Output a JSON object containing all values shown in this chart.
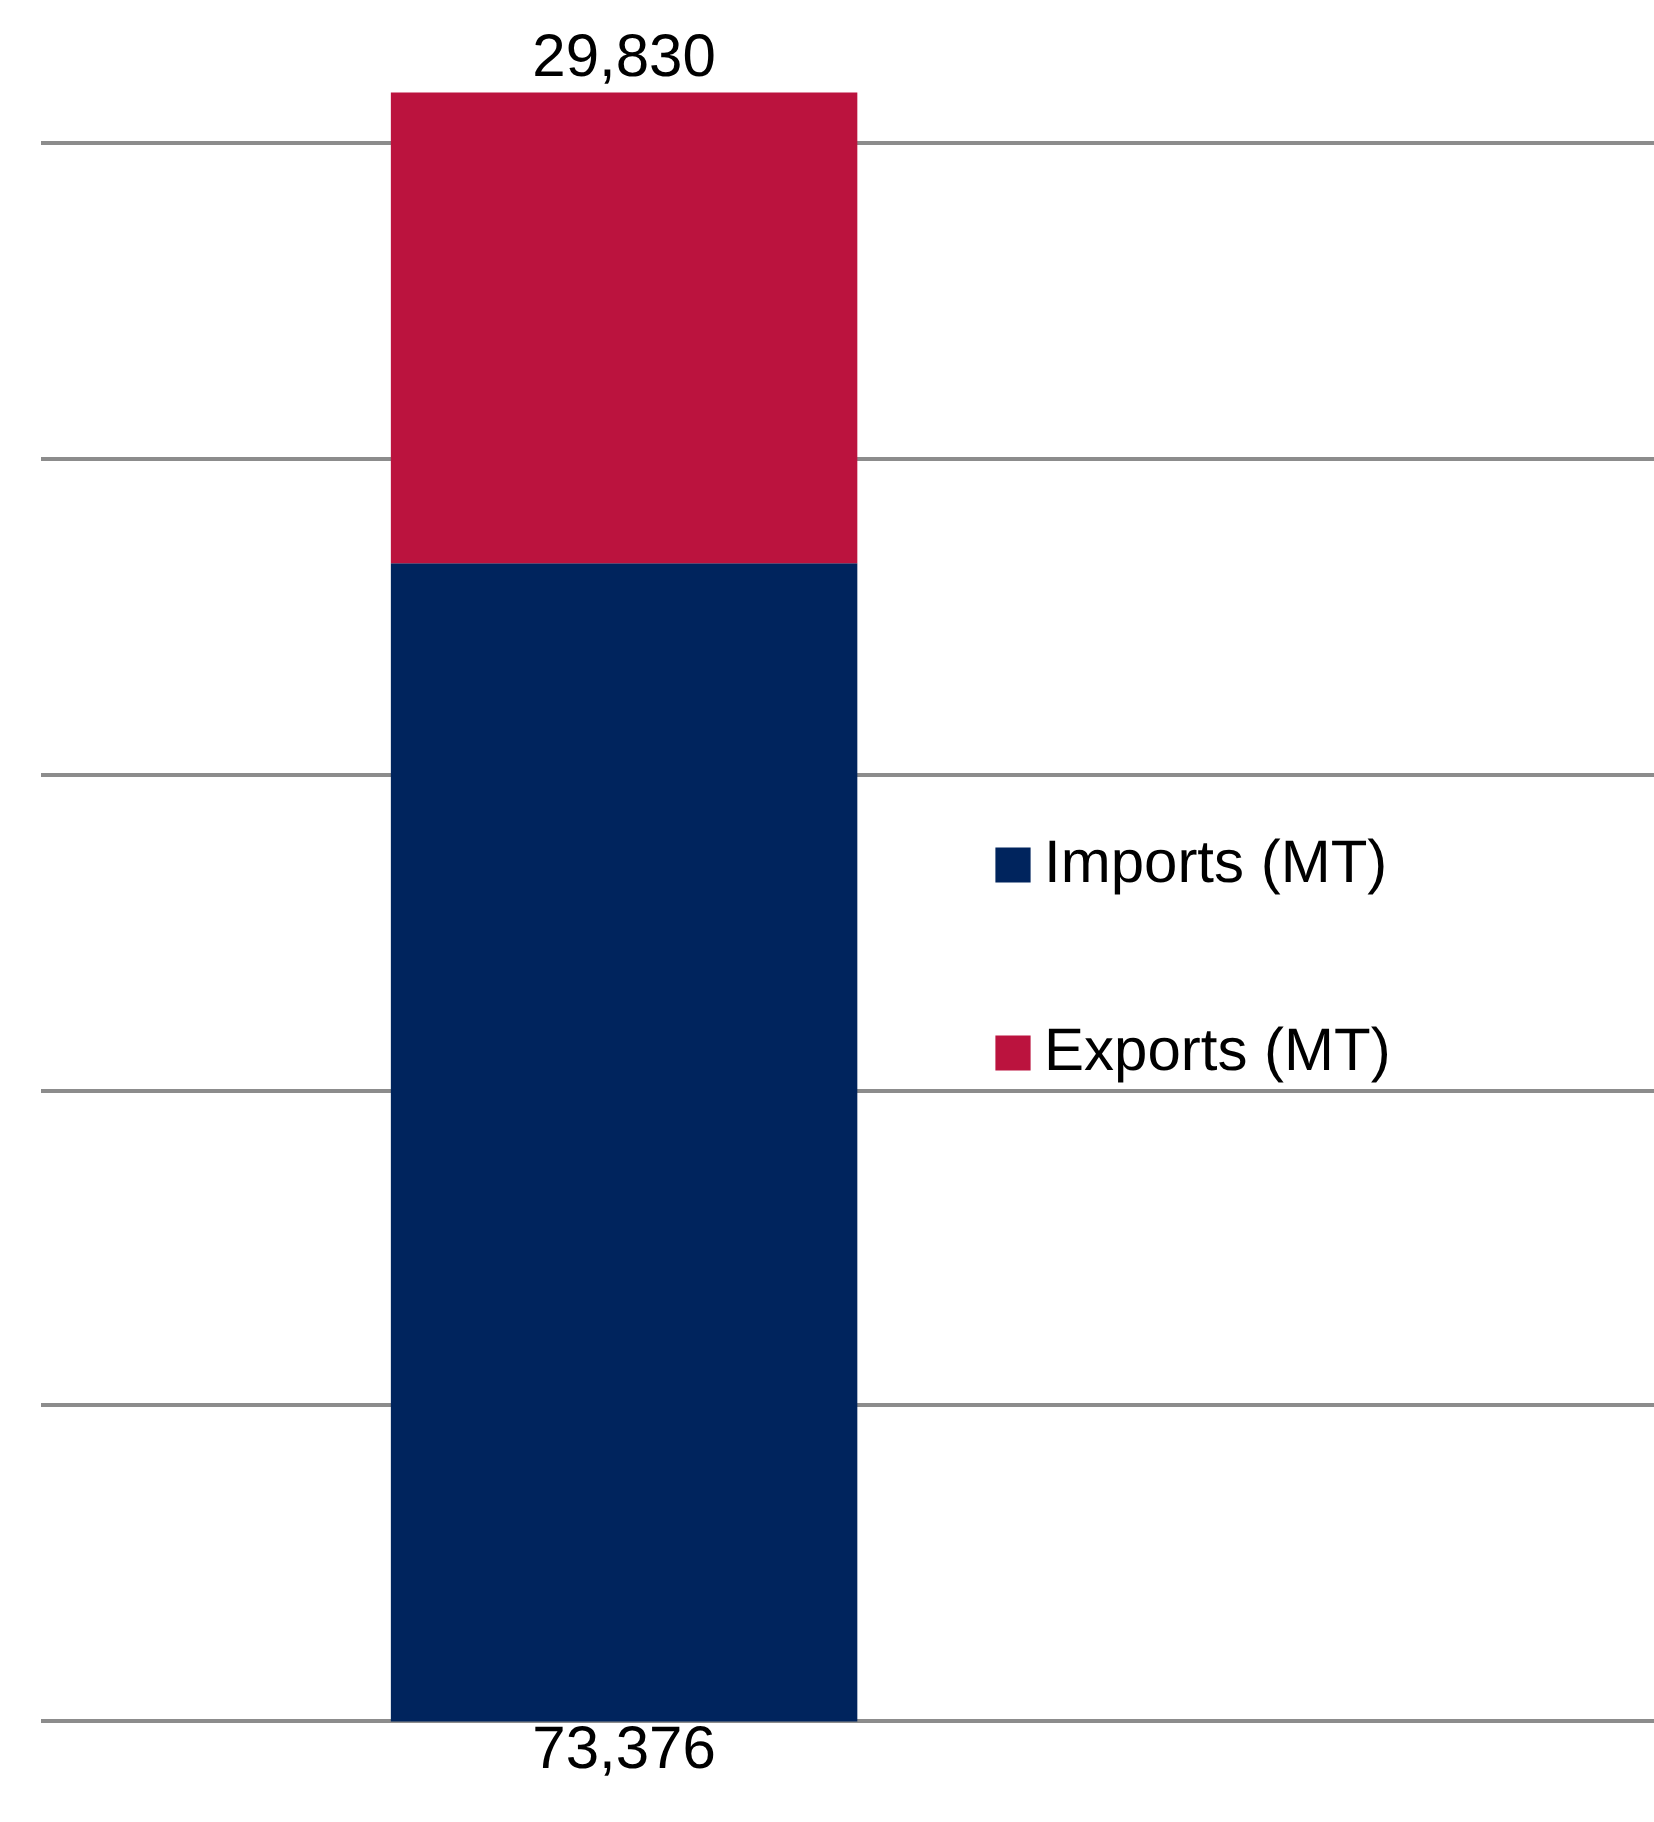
{
  "chart_data": {
    "type": "bar",
    "stacked": true,
    "categories": [
      null
    ],
    "series": [
      {
        "name": "Imports (MT)",
        "color": "#00245d",
        "values": [
          73376
        ],
        "value_labels": [
          "73,376"
        ]
      },
      {
        "name": "Exports (MT)",
        "color": "#bb133e",
        "values": [
          29830
        ],
        "value_labels": [
          "29,830"
        ]
      }
    ],
    "tick_labels": false,
    "grid": "y",
    "legend": "right"
  }
}
